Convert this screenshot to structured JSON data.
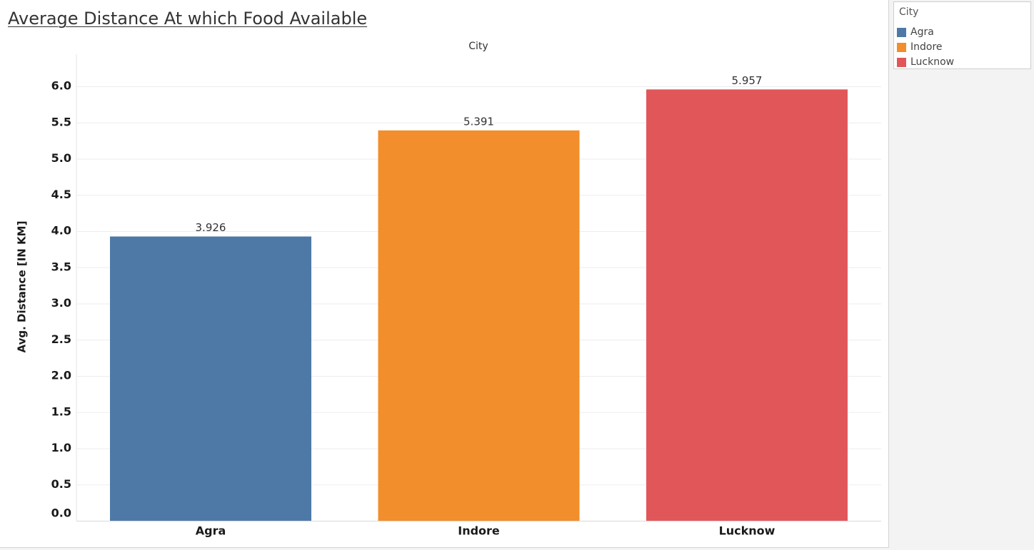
{
  "chart_data": {
    "type": "bar",
    "title": "Average Distance At which Food Available",
    "column_header": "City",
    "xlabel": "",
    "ylabel": "Avg. Distance [IN KM]",
    "categories": [
      "Agra",
      "Indore",
      "Lucknow"
    ],
    "values": [
      3.926,
      5.391,
      5.957
    ],
    "value_labels": [
      "3.926",
      "5.391",
      "5.957"
    ],
    "colors": [
      "#4e79a7",
      "#f28e2b",
      "#e15759"
    ],
    "y_ticks": [
      "0.0",
      "0.5",
      "1.0",
      "1.5",
      "2.0",
      "2.5",
      "3.0",
      "3.5",
      "4.0",
      "4.5",
      "5.0",
      "5.5",
      "6.0"
    ],
    "ylim": [
      0,
      6.4
    ],
    "grid": true,
    "legend": {
      "title": "City",
      "position": "right",
      "entries": [
        "Agra",
        "Indore",
        "Lucknow"
      ]
    }
  }
}
